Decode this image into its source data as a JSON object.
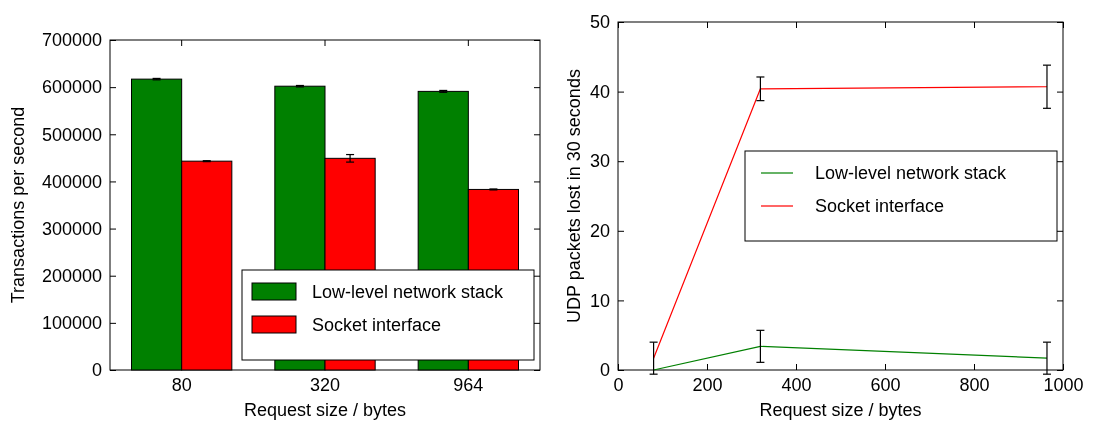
{
  "chart_data": [
    {
      "type": "bar",
      "categories": [
        "80",
        "320",
        "964"
      ],
      "xlabel": "Request size / bytes",
      "ylabel": "Transactions per second",
      "ylim": [
        0,
        700000
      ],
      "yticks": [
        0,
        100000,
        200000,
        300000,
        400000,
        500000,
        600000,
        700000
      ],
      "legend": "bottom right",
      "grid": false,
      "series": [
        {
          "name": "Low-level network stack",
          "color": "#008000",
          "values": [
            617000,
            602000,
            591000
          ],
          "errors": [
            1500,
            1500,
            2000
          ]
        },
        {
          "name": "Socket interface",
          "color": "#ff0000",
          "values": [
            443000,
            449000,
            383000
          ],
          "errors": [
            1000,
            8000,
            1000
          ]
        }
      ]
    },
    {
      "type": "line",
      "x": [
        80,
        320,
        964
      ],
      "xlabel": "Request size / bytes",
      "ylabel": "UDP packets lost in 30 seconds",
      "xlim": [
        0,
        1000
      ],
      "xticks": [
        0,
        200,
        400,
        600,
        800,
        1000
      ],
      "ylim": [
        0,
        50
      ],
      "yticks": [
        0,
        10,
        20,
        30,
        40,
        50
      ],
      "legend": "right",
      "grid": false,
      "marker": "none",
      "series": [
        {
          "name": "Low-level network stack",
          "color": "#008000",
          "values": [
            0,
            3.4,
            1.7
          ],
          "errors": [
            null,
            2.3,
            2.3
          ]
        },
        {
          "name": "Socket interface",
          "color": "#ff0000",
          "values": [
            1.7,
            40.4,
            40.7
          ],
          "errors": [
            2.3,
            1.7,
            3.1
          ]
        }
      ]
    }
  ]
}
